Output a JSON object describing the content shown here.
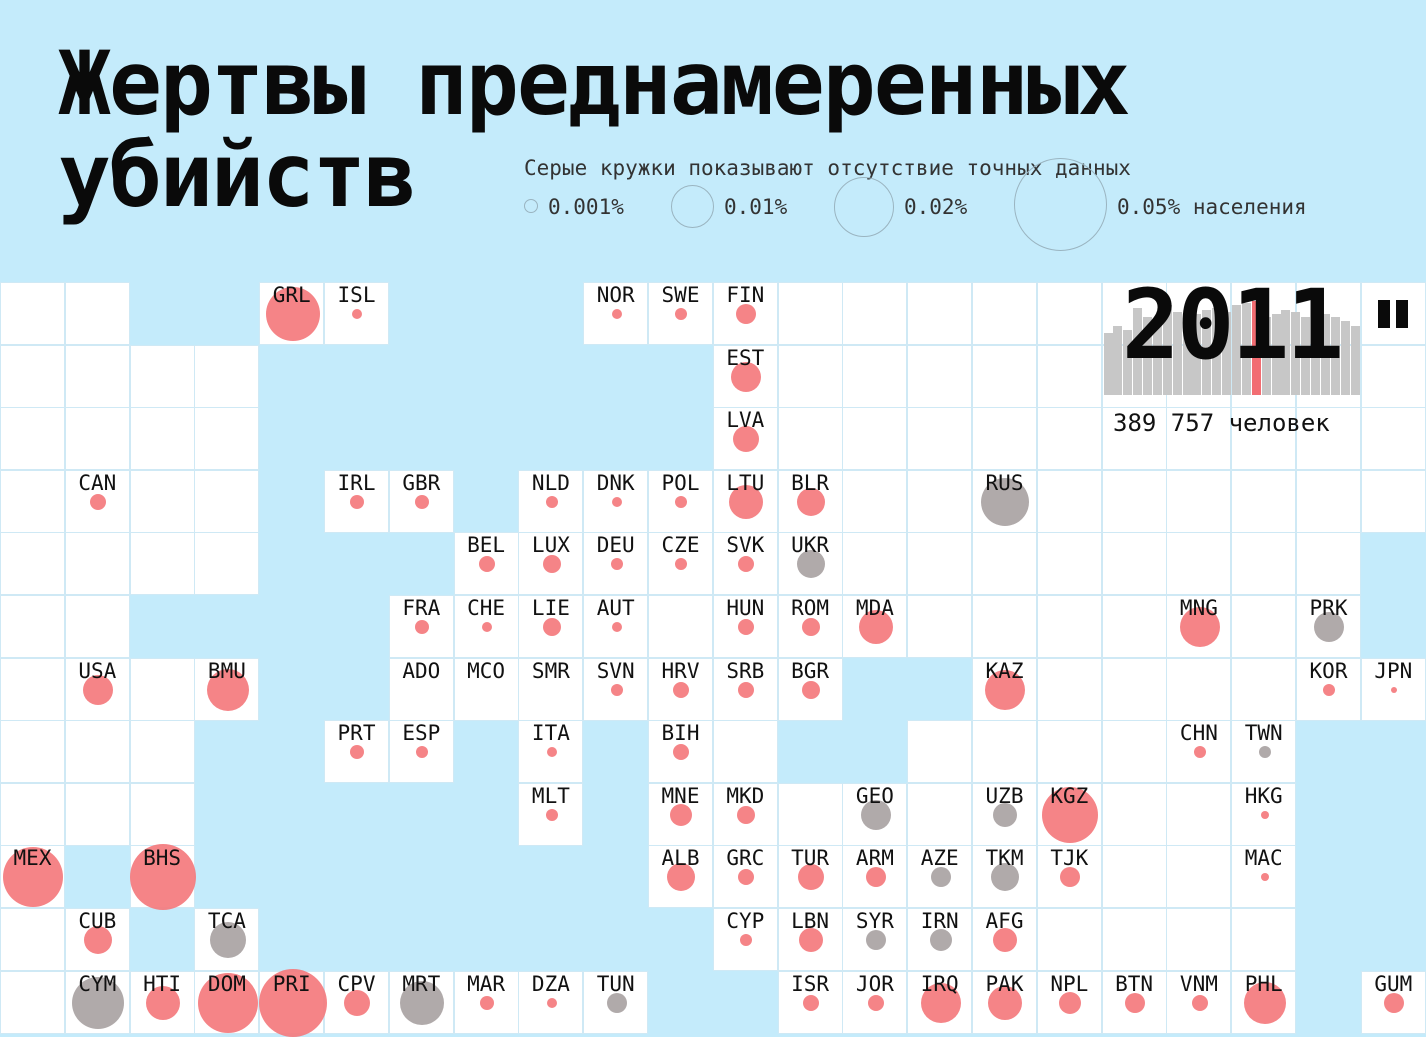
{
  "title": {
    "line1": "Жертвы преднамеренных",
    "line2": "убийств"
  },
  "legend": {
    "caption": "Серые кружки показывают отсутствие точных данных",
    "items": [
      {
        "label": "0.001%",
        "percent": 0.001
      },
      {
        "label": "0.01%",
        "percent": 0.01
      },
      {
        "label": "0.02%",
        "percent": 0.02
      },
      {
        "label": "0.05% населения",
        "percent": 0.05
      }
    ]
  },
  "year": "2011",
  "total": "389 757 человек",
  "colors": {
    "background": "#c4ebfb",
    "tile": "#ffffff",
    "exact": "#f47a7d",
    "no_data": "#a9a3a3",
    "highlight": "#f26d72",
    "bar": "#c7c7c7"
  },
  "timeline": {
    "highlight_index": 15,
    "levels": [
      0.55,
      0.62,
      0.58,
      0.78,
      0.7,
      0.66,
      0.8,
      0.74,
      0.7,
      0.72,
      0.76,
      0.78,
      0.74,
      0.8,
      0.82,
      0.84,
      0.7,
      0.72,
      0.76,
      0.74,
      0.7,
      0.74,
      0.72,
      0.7,
      0.66,
      0.62
    ]
  },
  "empty_tiles": [
    [
      0,
      0
    ],
    [
      1,
      0
    ],
    [
      0,
      1
    ],
    [
      1,
      1
    ],
    [
      2,
      1
    ],
    [
      3,
      1
    ],
    [
      0,
      2
    ],
    [
      1,
      2
    ],
    [
      2,
      2
    ],
    [
      3,
      2
    ],
    [
      0,
      3
    ],
    [
      2,
      3
    ],
    [
      3,
      3
    ],
    [
      0,
      4
    ],
    [
      1,
      4
    ],
    [
      2,
      4
    ],
    [
      3,
      4
    ],
    [
      0,
      5
    ],
    [
      1,
      5
    ],
    [
      0,
      6
    ],
    [
      2,
      6
    ],
    [
      0,
      7
    ],
    [
      1,
      7
    ],
    [
      2,
      7
    ],
    [
      0,
      8
    ],
    [
      2,
      8
    ],
    [
      0,
      10
    ],
    [
      1,
      8
    ],
    [
      0,
      11
    ],
    [
      12,
      0
    ],
    [
      13,
      0
    ],
    [
      14,
      0
    ],
    [
      15,
      0
    ],
    [
      16,
      0
    ],
    [
      17,
      0
    ],
    [
      18,
      0
    ],
    [
      19,
      0
    ],
    [
      20,
      0
    ],
    [
      21,
      0
    ],
    [
      12,
      1
    ],
    [
      13,
      1
    ],
    [
      14,
      1
    ],
    [
      15,
      1
    ],
    [
      16,
      1
    ],
    [
      17,
      1
    ],
    [
      18,
      1
    ],
    [
      19,
      1
    ],
    [
      20,
      1
    ],
    [
      21,
      1
    ],
    [
      12,
      2
    ],
    [
      13,
      2
    ],
    [
      14,
      2
    ],
    [
      15,
      2
    ],
    [
      16,
      2
    ],
    [
      17,
      2
    ],
    [
      18,
      2
    ],
    [
      19,
      2
    ],
    [
      20,
      2
    ],
    [
      21,
      2
    ],
    [
      13,
      3
    ],
    [
      14,
      3
    ],
    [
      16,
      3
    ],
    [
      17,
      3
    ],
    [
      18,
      3
    ],
    [
      19,
      3
    ],
    [
      20,
      3
    ],
    [
      21,
      3
    ],
    [
      13,
      4
    ],
    [
      14,
      4
    ],
    [
      15,
      4
    ],
    [
      16,
      4
    ],
    [
      17,
      4
    ],
    [
      18,
      4
    ],
    [
      19,
      4
    ],
    [
      20,
      4
    ],
    [
      10,
      5
    ],
    [
      14,
      5
    ],
    [
      15,
      5
    ],
    [
      16,
      5
    ],
    [
      17,
      5
    ],
    [
      19,
      5
    ],
    [
      11,
      4
    ],
    [
      16,
      6
    ],
    [
      17,
      6
    ],
    [
      18,
      6
    ],
    [
      19,
      6
    ],
    [
      11,
      7
    ],
    [
      14,
      7
    ],
    [
      15,
      7
    ],
    [
      16,
      7
    ],
    [
      17,
      7
    ],
    [
      12,
      8
    ],
    [
      14,
      8
    ],
    [
      17,
      8
    ],
    [
      18,
      8
    ],
    [
      16,
      9
    ],
    [
      17,
      9
    ],
    [
      18,
      9
    ],
    [
      16,
      10
    ],
    [
      17,
      10
    ],
    [
      18,
      10
    ],
    [
      19,
      10
    ]
  ],
  "countries": [
    {
      "code": "GRL",
      "r": 27,
      "c": "red",
      "col": 4,
      "row": 0
    },
    {
      "code": "ISL",
      "r": 5,
      "c": "red",
      "col": 5,
      "row": 0
    },
    {
      "code": "NOR",
      "r": 5,
      "c": "red",
      "col": 9,
      "row": 0
    },
    {
      "code": "SWE",
      "r": 6,
      "c": "red",
      "col": 10,
      "row": 0
    },
    {
      "code": "FIN",
      "r": 10,
      "c": "red",
      "col": 11,
      "row": 0
    },
    {
      "code": "EST",
      "r": 15,
      "c": "red",
      "col": 11,
      "row": 1
    },
    {
      "code": "LVA",
      "r": 13,
      "c": "red",
      "col": 11,
      "row": 2
    },
    {
      "code": "CAN",
      "r": 8,
      "c": "red",
      "col": 1,
      "row": 3
    },
    {
      "code": "IRL",
      "r": 7,
      "c": "red",
      "col": 5,
      "row": 3
    },
    {
      "code": "GBR",
      "r": 7,
      "c": "red",
      "col": 6,
      "row": 3
    },
    {
      "code": "NLD",
      "r": 6,
      "c": "red",
      "col": 8,
      "row": 3
    },
    {
      "code": "DNK",
      "r": 5,
      "c": "red",
      "col": 9,
      "row": 3
    },
    {
      "code": "POL",
      "r": 6,
      "c": "red",
      "col": 10,
      "row": 3
    },
    {
      "code": "LTU",
      "r": 17,
      "c": "red",
      "col": 11,
      "row": 3
    },
    {
      "code": "BLR",
      "r": 14,
      "c": "red",
      "col": 12,
      "row": 3
    },
    {
      "code": "RUS",
      "r": 24,
      "c": "grey",
      "col": 15,
      "row": 3
    },
    {
      "code": "BEL",
      "r": 8,
      "c": "red",
      "col": 7,
      "row": 4
    },
    {
      "code": "LUX",
      "r": 9,
      "c": "red",
      "col": 8,
      "row": 4
    },
    {
      "code": "DEU",
      "r": 6,
      "c": "red",
      "col": 9,
      "row": 4
    },
    {
      "code": "CZE",
      "r": 6,
      "c": "red",
      "col": 10,
      "row": 4
    },
    {
      "code": "SVK",
      "r": 8,
      "c": "red",
      "col": 11,
      "row": 4
    },
    {
      "code": "UKR",
      "r": 14,
      "c": "grey",
      "col": 12,
      "row": 4
    },
    {
      "code": "FRA",
      "r": 7,
      "c": "red",
      "col": 6,
      "row": 5
    },
    {
      "code": "CHE",
      "r": 5,
      "c": "red",
      "col": 7,
      "row": 5
    },
    {
      "code": "LIE",
      "r": 9,
      "c": "red",
      "col": 8,
      "row": 5
    },
    {
      "code": "AUT",
      "r": 5,
      "c": "red",
      "col": 9,
      "row": 5
    },
    {
      "code": "HUN",
      "r": 8,
      "c": "red",
      "col": 11,
      "row": 5
    },
    {
      "code": "ROM",
      "r": 9,
      "c": "red",
      "col": 12,
      "row": 5
    },
    {
      "code": "MDA",
      "r": 17,
      "c": "red",
      "col": 13,
      "row": 5
    },
    {
      "code": "MNG",
      "r": 20,
      "c": "red",
      "col": 18,
      "row": 5
    },
    {
      "code": "PRK",
      "r": 15,
      "c": "grey",
      "col": 20,
      "row": 5
    },
    {
      "code": "USA",
      "r": 15,
      "c": "red",
      "col": 1,
      "row": 6
    },
    {
      "code": "BMU",
      "r": 21,
      "c": "red",
      "col": 3,
      "row": 6
    },
    {
      "code": "ADO",
      "r": 0,
      "c": "red",
      "col": 6,
      "row": 6
    },
    {
      "code": "MCO",
      "r": 0,
      "c": "red",
      "col": 7,
      "row": 6
    },
    {
      "code": "SMR",
      "r": 0,
      "c": "red",
      "col": 8,
      "row": 6
    },
    {
      "code": "SVN",
      "r": 6,
      "c": "red",
      "col": 9,
      "row": 6
    },
    {
      "code": "HRV",
      "r": 8,
      "c": "red",
      "col": 10,
      "row": 6
    },
    {
      "code": "SRB",
      "r": 8,
      "c": "red",
      "col": 11,
      "row": 6
    },
    {
      "code": "BGR",
      "r": 9,
      "c": "red",
      "col": 12,
      "row": 6
    },
    {
      "code": "KAZ",
      "r": 20,
      "c": "red",
      "col": 15,
      "row": 6
    },
    {
      "code": "KOR",
      "r": 6,
      "c": "red",
      "col": 20,
      "row": 6
    },
    {
      "code": "JPN",
      "r": 3,
      "c": "red",
      "col": 21,
      "row": 6
    },
    {
      "code": "PRT",
      "r": 7,
      "c": "red",
      "col": 5,
      "row": 7
    },
    {
      "code": "ESP",
      "r": 6,
      "c": "red",
      "col": 6,
      "row": 7
    },
    {
      "code": "ITA",
      "r": 5,
      "c": "red",
      "col": 8,
      "row": 7
    },
    {
      "code": "BIH",
      "r": 8,
      "c": "red",
      "col": 10,
      "row": 7
    },
    {
      "code": "CHN",
      "r": 6,
      "c": "red",
      "col": 18,
      "row": 7
    },
    {
      "code": "TWN",
      "r": 6,
      "c": "grey",
      "col": 19,
      "row": 7
    },
    {
      "code": "MLT",
      "r": 6,
      "c": "red",
      "col": 8,
      "row": 8
    },
    {
      "code": "MNE",
      "r": 11,
      "c": "red",
      "col": 10,
      "row": 8
    },
    {
      "code": "MKD",
      "r": 9,
      "c": "red",
      "col": 11,
      "row": 8
    },
    {
      "code": "GEO",
      "r": 15,
      "c": "grey",
      "col": 13,
      "row": 8
    },
    {
      "code": "UZB",
      "r": 12,
      "c": "grey",
      "col": 15,
      "row": 8
    },
    {
      "code": "KGZ",
      "r": 28,
      "c": "red",
      "col": 16,
      "row": 8
    },
    {
      "code": "HKG",
      "r": 4,
      "c": "red",
      "col": 19,
      "row": 8
    },
    {
      "code": "MEX",
      "r": 30,
      "c": "red",
      "col": 0,
      "row": 9
    },
    {
      "code": "BHS",
      "r": 33,
      "c": "red",
      "col": 2,
      "row": 9
    },
    {
      "code": "ALB",
      "r": 14,
      "c": "red",
      "col": 10,
      "row": 9
    },
    {
      "code": "GRC",
      "r": 8,
      "c": "red",
      "col": 11,
      "row": 9
    },
    {
      "code": "TUR",
      "r": 13,
      "c": "red",
      "col": 12,
      "row": 9
    },
    {
      "code": "ARM",
      "r": 10,
      "c": "red",
      "col": 13,
      "row": 9
    },
    {
      "code": "AZE",
      "r": 10,
      "c": "grey",
      "col": 14,
      "row": 9
    },
    {
      "code": "TKM",
      "r": 14,
      "c": "grey",
      "col": 15,
      "row": 9
    },
    {
      "code": "TJK",
      "r": 10,
      "c": "red",
      "col": 16,
      "row": 9
    },
    {
      "code": "MAC",
      "r": 4,
      "c": "red",
      "col": 19,
      "row": 9
    },
    {
      "code": "CUB",
      "r": 14,
      "c": "red",
      "col": 1,
      "row": 10
    },
    {
      "code": "TCA",
      "r": 18,
      "c": "grey",
      "col": 3,
      "row": 10
    },
    {
      "code": "CYP",
      "r": 6,
      "c": "red",
      "col": 11,
      "row": 10
    },
    {
      "code": "LBN",
      "r": 12,
      "c": "red",
      "col": 12,
      "row": 10
    },
    {
      "code": "SYR",
      "r": 10,
      "c": "grey",
      "col": 13,
      "row": 10
    },
    {
      "code": "IRN",
      "r": 11,
      "c": "grey",
      "col": 14,
      "row": 10
    },
    {
      "code": "AFG",
      "r": 12,
      "c": "red",
      "col": 15,
      "row": 10
    },
    {
      "code": "CYM",
      "r": 26,
      "c": "grey",
      "col": 1,
      "row": 11
    },
    {
      "code": "HTI",
      "r": 17,
      "c": "red",
      "col": 2,
      "row": 11
    },
    {
      "code": "DOM",
      "r": 30,
      "c": "red",
      "col": 3,
      "row": 11
    },
    {
      "code": "PRI",
      "r": 34,
      "c": "red",
      "col": 4,
      "row": 11
    },
    {
      "code": "CPV",
      "r": 13,
      "c": "red",
      "col": 5,
      "row": 11
    },
    {
      "code": "MRT",
      "r": 22,
      "c": "grey",
      "col": 6,
      "row": 11
    },
    {
      "code": "MAR",
      "r": 7,
      "c": "red",
      "col": 7,
      "row": 11
    },
    {
      "code": "DZA",
      "r": 5,
      "c": "red",
      "col": 8,
      "row": 11
    },
    {
      "code": "TUN",
      "r": 10,
      "c": "grey",
      "col": 9,
      "row": 11
    },
    {
      "code": "ISR",
      "r": 8,
      "c": "red",
      "col": 12,
      "row": 11
    },
    {
      "code": "JOR",
      "r": 8,
      "c": "red",
      "col": 13,
      "row": 11
    },
    {
      "code": "IRQ",
      "r": 20,
      "c": "red",
      "col": 14,
      "row": 11
    },
    {
      "code": "PAK",
      "r": 17,
      "c": "red",
      "col": 15,
      "row": 11
    },
    {
      "code": "NPL",
      "r": 11,
      "c": "red",
      "col": 16,
      "row": 11
    },
    {
      "code": "BTN",
      "r": 10,
      "c": "red",
      "col": 17,
      "row": 11
    },
    {
      "code": "VNM",
      "r": 8,
      "c": "red",
      "col": 18,
      "row": 11
    },
    {
      "code": "PHL",
      "r": 21,
      "c": "red",
      "col": 19,
      "row": 11
    },
    {
      "code": "GUM",
      "r": 10,
      "c": "red",
      "col": 21,
      "row": 11
    }
  ]
}
